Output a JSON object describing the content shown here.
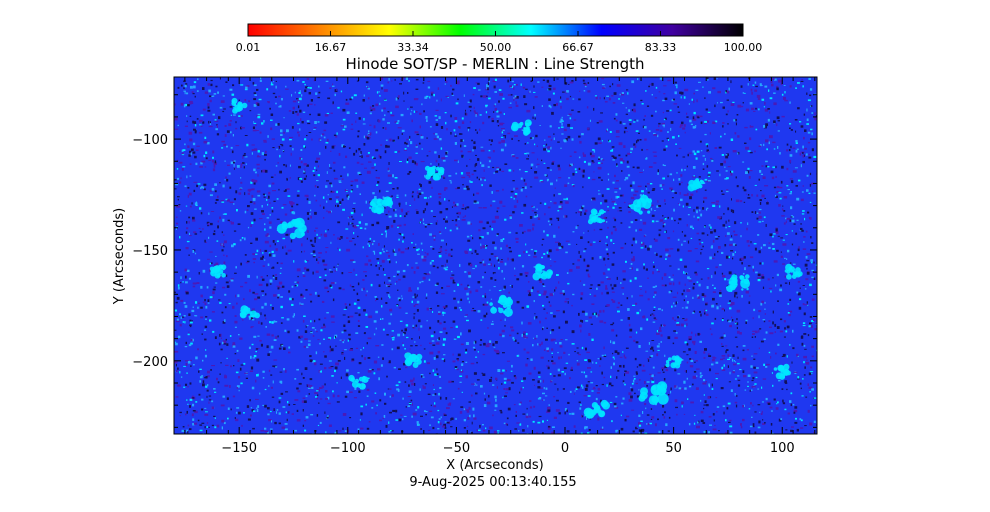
{
  "chart_data": {
    "type": "heatmap",
    "title": "Hinode SOT/SP - MERLIN : Line Strength",
    "xlabel": "X (Arcseconds)",
    "ylabel": "Y (Arcseconds)",
    "footer": "9-Aug-2025 00:13:40.155",
    "xlim": [
      -180,
      116
    ],
    "ylim": [
      -233,
      -72
    ],
    "xticks": [
      -150,
      -100,
      -50,
      0,
      50,
      100
    ],
    "yticks": [
      -100,
      -150,
      -200
    ],
    "xtick_labels": [
      "−150",
      "−100",
      "−50",
      "0",
      "50",
      "100"
    ],
    "ytick_labels": [
      "−100",
      "−150",
      "−200"
    ],
    "colorbar": {
      "range": [
        0.01,
        100.0
      ],
      "tick_values": [
        0.01,
        16.67,
        33.34,
        50.0,
        66.67,
        83.33,
        100.0
      ],
      "tick_labels": [
        "0.01",
        "16.67",
        "33.34",
        "50.00",
        "66.67",
        "83.33",
        "100.00"
      ],
      "colormap_stops": [
        "#ff0000",
        "#ff8000",
        "#ffff00",
        "#00ff00",
        "#00ffff",
        "#0000ff",
        "#4000a0",
        "#000000"
      ]
    },
    "field": {
      "dominant_color": "#1f38f0",
      "feature_colors": [
        "#00e6ff",
        "#26a6ff",
        "#4a1ab8",
        "#12105a"
      ],
      "bright_patches": [
        {
          "x": -60,
          "y": -115,
          "r": 3
        },
        {
          "x": -85,
          "y": -130,
          "r": 4
        },
        {
          "x": -125,
          "y": -140,
          "r": 5
        },
        {
          "x": -160,
          "y": -160,
          "r": 3
        },
        {
          "x": -30,
          "y": -175,
          "r": 4
        },
        {
          "x": 15,
          "y": -135,
          "r": 3
        },
        {
          "x": 35,
          "y": -130,
          "r": 4
        },
        {
          "x": 40,
          "y": -215,
          "r": 5
        },
        {
          "x": 15,
          "y": -222,
          "r": 4
        },
        {
          "x": 80,
          "y": -165,
          "r": 4
        },
        {
          "x": 105,
          "y": -160,
          "r": 3
        },
        {
          "x": 100,
          "y": -205,
          "r": 3
        },
        {
          "x": -95,
          "y": -210,
          "r": 3
        },
        {
          "x": -145,
          "y": -178,
          "r": 3
        },
        {
          "x": -150,
          "y": -85,
          "r": 3
        },
        {
          "x": -20,
          "y": -95,
          "r": 3
        },
        {
          "x": 60,
          "y": -120,
          "r": 3
        },
        {
          "x": -70,
          "y": -200,
          "r": 3
        },
        {
          "x": 50,
          "y": -200,
          "r": 3
        },
        {
          "x": -10,
          "y": -160,
          "r": 3
        }
      ]
    }
  }
}
